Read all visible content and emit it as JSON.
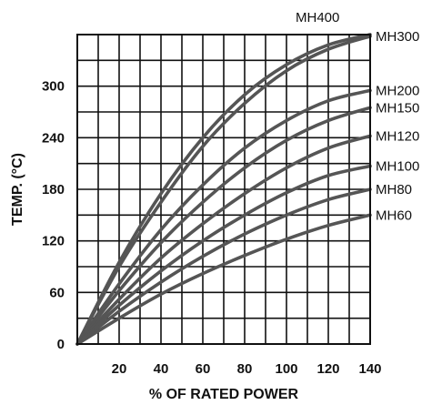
{
  "chart_data": {
    "type": "line",
    "xlabel": "% OF RATED POWER",
    "ylabel": "TEMP. (°C)",
    "x_ticks": [
      20,
      40,
      60,
      80,
      100,
      120,
      140
    ],
    "y_ticks": [
      0,
      60,
      120,
      180,
      240,
      300
    ],
    "xlim": [
      0,
      140
    ],
    "ylim": [
      0,
      360
    ],
    "grid": true,
    "curve_color": "#555555",
    "series": [
      {
        "name": "MH400",
        "x": [
          0,
          20,
          40,
          60,
          80,
          100,
          120,
          140
        ],
        "values": [
          0,
          95,
          175,
          240,
          290,
          325,
          348,
          360
        ]
      },
      {
        "name": "MH300",
        "x": [
          0,
          20,
          40,
          60,
          80,
          100,
          120,
          140
        ],
        "values": [
          0,
          90,
          165,
          230,
          280,
          318,
          343,
          358
        ]
      },
      {
        "name": "MH200",
        "x": [
          0,
          20,
          40,
          60,
          80,
          100,
          120,
          140
        ],
        "values": [
          0,
          70,
          133,
          185,
          228,
          260,
          283,
          295
        ]
      },
      {
        "name": "MH150",
        "x": [
          0,
          20,
          40,
          60,
          80,
          100,
          120,
          140
        ],
        "values": [
          0,
          62,
          118,
          165,
          205,
          237,
          260,
          275
        ]
      },
      {
        "name": "MH120",
        "x": [
          0,
          20,
          40,
          60,
          80,
          100,
          120,
          140
        ],
        "values": [
          0,
          52,
          100,
          140,
          175,
          205,
          228,
          242
        ]
      },
      {
        "name": "MH100",
        "x": [
          0,
          20,
          40,
          60,
          80,
          100,
          120,
          140
        ],
        "values": [
          0,
          45,
          85,
          120,
          150,
          176,
          196,
          207
        ]
      },
      {
        "name": "MH80",
        "x": [
          0,
          20,
          40,
          60,
          80,
          100,
          120,
          140
        ],
        "values": [
          0,
          38,
          72,
          102,
          128,
          150,
          168,
          180
        ]
      },
      {
        "name": "MH60",
        "x": [
          0,
          20,
          40,
          60,
          80,
          100,
          120,
          140
        ],
        "values": [
          0,
          30,
          58,
          82,
          103,
          122,
          138,
          150
        ]
      }
    ]
  }
}
